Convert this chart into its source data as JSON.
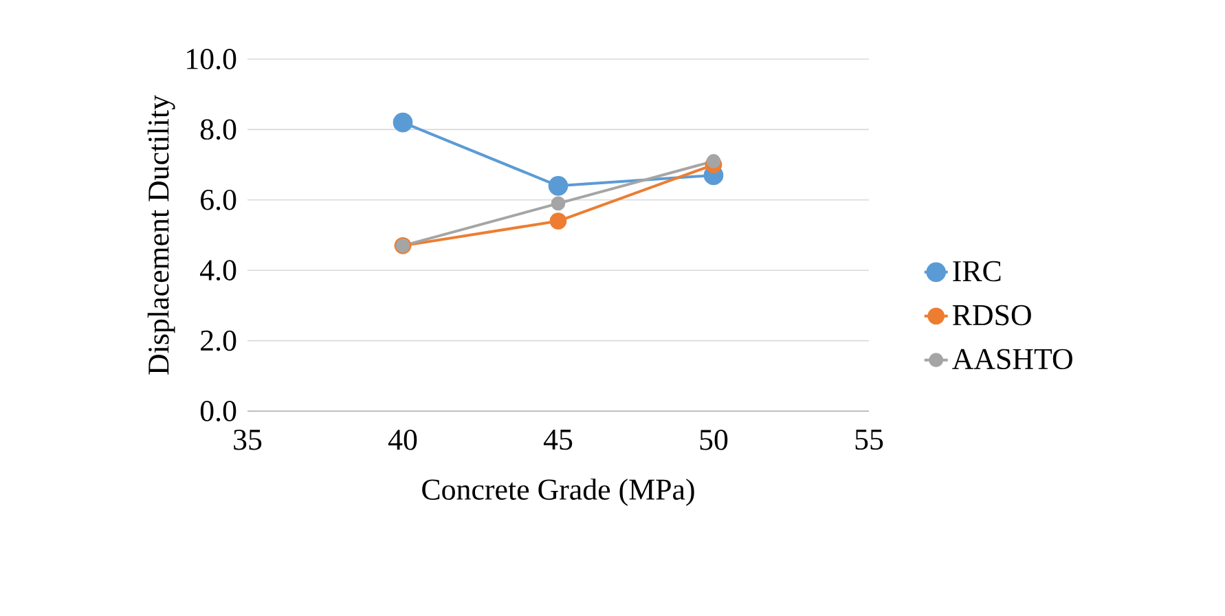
{
  "chart_data": {
    "type": "line",
    "xlabel": "Concrete Grade (MPa)",
    "ylabel": "Displacement Ductility",
    "x": [
      40,
      45,
      50
    ],
    "series": [
      {
        "name": "IRC",
        "color": "#5b9bd5",
        "values": [
          8.2,
          6.4,
          6.7
        ]
      },
      {
        "name": "RDSO",
        "color": "#ed7d31",
        "values": [
          4.7,
          5.4,
          7.0
        ]
      },
      {
        "name": "AASHTO",
        "color": "#a5a5a5",
        "values": [
          4.7,
          5.9,
          7.1
        ]
      }
    ],
    "xlim": [
      35,
      55
    ],
    "xticks": [
      35,
      40,
      45,
      50,
      55
    ],
    "ylim": [
      0,
      10
    ],
    "yticks": [
      {
        "value": 0,
        "label": "0.0"
      },
      {
        "value": 2,
        "label": "2.0"
      },
      {
        "value": 4,
        "label": "4.0"
      },
      {
        "value": 6,
        "label": "6.0"
      },
      {
        "value": 8,
        "label": "8.0"
      },
      {
        "value": 10,
        "label": "10.0"
      }
    ],
    "grid": "y",
    "legend": "right",
    "marker": "circle",
    "line_style": "solid"
  }
}
